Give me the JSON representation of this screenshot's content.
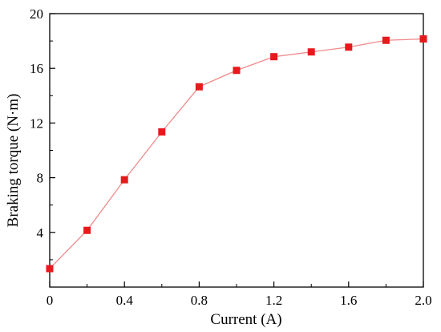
{
  "chart_data": {
    "type": "line",
    "xlabel": "Current (A)",
    "ylabel": "Braking torque (N·m)",
    "xlim": [
      0,
      2.0
    ],
    "ylim": [
      0,
      20
    ],
    "x_ticks": [
      0,
      0.4,
      0.8,
      1.2,
      1.6,
      2.0
    ],
    "x_tick_labels": [
      "0",
      "0.4",
      "0.8",
      "1.2",
      "1.6",
      "2.0"
    ],
    "y_ticks": [
      4,
      8,
      12,
      16,
      20
    ],
    "y_tick_labels": [
      "4",
      "8",
      "12",
      "16",
      "20"
    ],
    "grid": false,
    "series": [
      {
        "color": "#e8191c",
        "line_color": "#f08a8a",
        "marker": "square",
        "x": [
          0,
          0.2,
          0.4,
          0.6,
          0.8,
          1.0,
          1.2,
          1.4,
          1.6,
          1.8,
          2.0
        ],
        "y": [
          1.35,
          4.15,
          7.85,
          11.35,
          14.65,
          15.85,
          16.85,
          17.2,
          17.55,
          18.05,
          18.15
        ]
      }
    ]
  }
}
